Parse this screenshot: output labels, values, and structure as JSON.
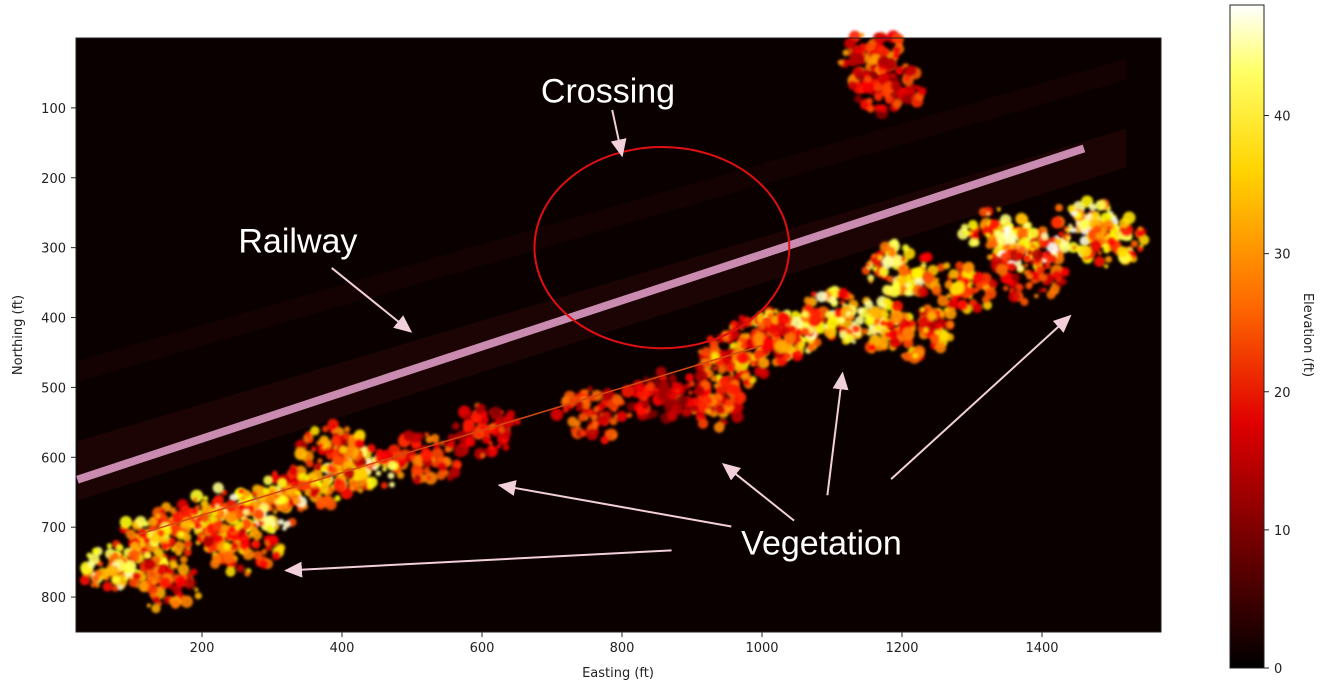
{
  "chart_data": {
    "type": "heatmap",
    "title": "",
    "xlabel": "Easting (ft)",
    "ylabel": "Northing (ft)",
    "xlim": [
      20,
      1570
    ],
    "ylim": [
      850,
      0
    ],
    "x_ticks": [
      200,
      400,
      600,
      800,
      1000,
      1200,
      1400
    ],
    "y_ticks": [
      100,
      200,
      300,
      400,
      500,
      600,
      700,
      800
    ],
    "colormap": "hot",
    "colorbar": {
      "label": "Elevation (ft)",
      "range": [
        0,
        48
      ],
      "ticks": [
        0,
        10,
        20,
        30,
        40
      ]
    },
    "colors": {
      "background": "#0b0000",
      "railway_line": "#c98bb0",
      "crossing_circle": "#e01010",
      "arrow": "#f1cfdb"
    },
    "annotations": [
      {
        "text": "Crossing",
        "x": 780,
        "y": 75,
        "points_to": [
          800,
          168
        ]
      },
      {
        "text": "Railway",
        "x": 337,
        "y": 290,
        "points_to": [
          498,
          420
        ]
      },
      {
        "text": "Vegetation",
        "x": 1085,
        "y": 722,
        "points_to": [
          [
            320,
            762
          ],
          [
            625,
            640
          ],
          [
            945,
            610
          ],
          [
            1115,
            480
          ],
          [
            1440,
            398
          ]
        ]
      }
    ],
    "railway": {
      "x": [
        22,
        1460
      ],
      "y": [
        632,
        158
      ]
    },
    "crossing": {
      "cx": 857,
      "cy": 300,
      "rx": 182,
      "ry": 144
    },
    "vegetation_clusters": [
      {
        "x": 1200,
        "y": 330,
        "elev": 38
      },
      {
        "x": 1280,
        "y": 360,
        "elev": 30
      },
      {
        "x": 1340,
        "y": 280,
        "elev": 36
      },
      {
        "x": 1380,
        "y": 300,
        "elev": 42
      },
      {
        "x": 1460,
        "y": 270,
        "elev": 40
      },
      {
        "x": 1500,
        "y": 290,
        "elev": 33
      },
      {
        "x": 1040,
        "y": 420,
        "elev": 34
      },
      {
        "x": 1100,
        "y": 400,
        "elev": 38
      },
      {
        "x": 1160,
        "y": 410,
        "elev": 36
      },
      {
        "x": 1220,
        "y": 420,
        "elev": 28
      },
      {
        "x": 960,
        "y": 460,
        "elev": 30
      },
      {
        "x": 1000,
        "y": 430,
        "elev": 26
      },
      {
        "x": 930,
        "y": 520,
        "elev": 24
      },
      {
        "x": 860,
        "y": 510,
        "elev": 18
      },
      {
        "x": 760,
        "y": 540,
        "elev": 22
      },
      {
        "x": 600,
        "y": 560,
        "elev": 22
      },
      {
        "x": 520,
        "y": 600,
        "elev": 24
      },
      {
        "x": 430,
        "y": 620,
        "elev": 38
      },
      {
        "x": 390,
        "y": 590,
        "elev": 28
      },
      {
        "x": 350,
        "y": 640,
        "elev": 30
      },
      {
        "x": 290,
        "y": 670,
        "elev": 40
      },
      {
        "x": 230,
        "y": 680,
        "elev": 36
      },
      {
        "x": 180,
        "y": 700,
        "elev": 30
      },
      {
        "x": 120,
        "y": 720,
        "elev": 34
      },
      {
        "x": 80,
        "y": 760,
        "elev": 38
      },
      {
        "x": 150,
        "y": 780,
        "elev": 26
      },
      {
        "x": 260,
        "y": 730,
        "elev": 28
      },
      {
        "x": 1160,
        "y": 30,
        "elev": 24
      },
      {
        "x": 1180,
        "y": 70,
        "elev": 20
      },
      {
        "x": 1380,
        "y": 340,
        "elev": 22
      }
    ]
  }
}
